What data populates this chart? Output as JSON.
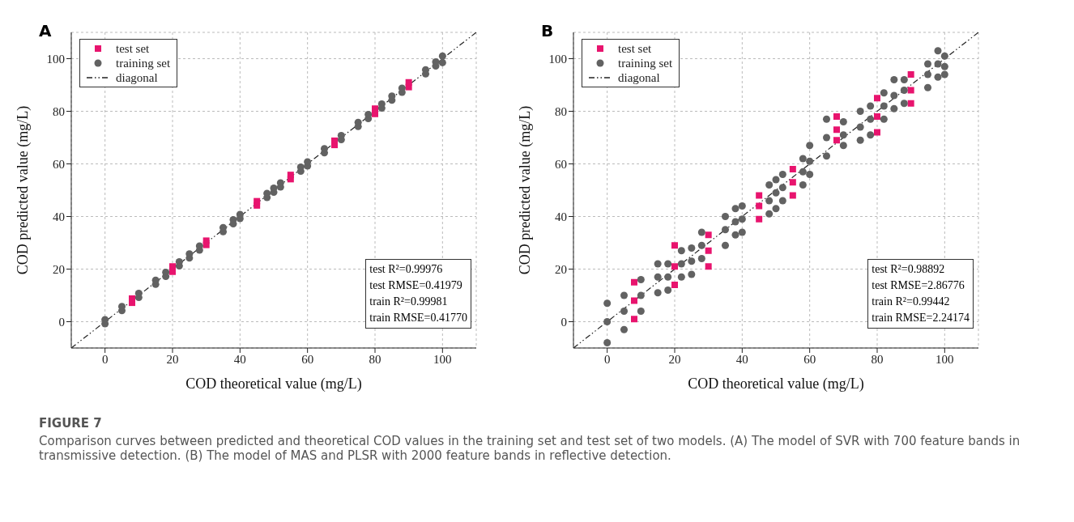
{
  "chart_data": [
    {
      "type": "scatter",
      "title": "A",
      "xlabel": "COD theoretical value (mg/L)",
      "ylabel": "COD predicted value (mg/L)",
      "xlim": [
        -10,
        110
      ],
      "ylim": [
        -10,
        110
      ],
      "xticks": [
        0,
        20,
        40,
        60,
        80,
        100
      ],
      "yticks": [
        0,
        20,
        40,
        60,
        80,
        100
      ],
      "grid": true,
      "legend": "top left",
      "series": [
        {
          "name": "test set",
          "color": "#e8146e",
          "marker": "square",
          "x": [
            8,
            8,
            20,
            20,
            30,
            30,
            45,
            45,
            55,
            55,
            68,
            68,
            80,
            80,
            90,
            90
          ],
          "values": [
            7.2,
            8.8,
            19,
            21,
            29.2,
            30.8,
            44.2,
            45.8,
            54.2,
            55.8,
            67.2,
            68.8,
            79,
            81,
            89.2,
            91
          ]
        },
        {
          "name": "training set",
          "color": "#626262",
          "marker": "circle",
          "x": [
            0,
            0,
            5,
            5,
            10,
            10,
            15,
            15,
            18,
            18,
            22,
            22,
            25,
            25,
            28,
            28,
            35,
            35,
            38,
            38,
            40,
            40,
            48,
            48,
            50,
            50,
            52,
            52,
            58,
            58,
            60,
            60,
            65,
            65,
            70,
            70,
            75,
            75,
            78,
            78,
            82,
            82,
            85,
            85,
            88,
            88,
            95,
            95,
            98,
            98,
            100,
            100
          ],
          "values": [
            -0.8,
            0.8,
            4.2,
            5.8,
            9.2,
            10.8,
            14.2,
            15.8,
            17.2,
            18.8,
            21.2,
            22.8,
            24.2,
            25.8,
            27.2,
            28.8,
            34.2,
            35.8,
            37.2,
            38.8,
            39.2,
            40.8,
            47.2,
            48.8,
            49.2,
            50.8,
            51.2,
            52.8,
            57.2,
            58.8,
            59.2,
            60.8,
            64.2,
            65.8,
            69.2,
            70.8,
            74.2,
            75.8,
            77.2,
            78.8,
            81.2,
            82.8,
            84.2,
            85.8,
            87.2,
            88.8,
            94.2,
            95.8,
            97.2,
            98.8,
            98.5,
            101
          ]
        },
        {
          "name": "diagonal",
          "type": "line",
          "color": "#222222",
          "line_style": "dashed",
          "marker": "none",
          "x": [
            -10,
            110
          ],
          "values": [
            -10,
            110
          ]
        }
      ],
      "annotations": [
        "test R²=0.99976",
        "test RMSE=0.41979",
        "train R²=0.99981",
        "train RMSE=0.41770",
        "FIGURE 7",
        "Comparison curves between predicted and theoretical COD values in the training set and test set of two models. (A) The model of SVR with 700 feature bands in transmissive detection. (B) The model of MAS and PLSR with 2000 feature bands in reflective detection."
      ]
    },
    {
      "type": "scatter",
      "title": "B",
      "xlabel": "COD theoretical value (mg/L)",
      "ylabel": "COD predicted value (mg/L)",
      "xlim": [
        -10,
        110
      ],
      "ylim": [
        -10,
        110
      ],
      "xticks": [
        0,
        20,
        40,
        60,
        80,
        100
      ],
      "yticks": [
        0,
        20,
        40,
        60,
        80,
        100
      ],
      "grid": true,
      "legend": "top left",
      "series": [
        {
          "name": "test set",
          "color": "#e8146e",
          "marker": "square",
          "x": [
            8,
            8,
            8,
            20,
            20,
            20,
            30,
            30,
            30,
            45,
            45,
            45,
            55,
            55,
            55,
            68,
            68,
            68,
            80,
            80,
            80,
            90,
            90,
            90
          ],
          "values": [
            1,
            8,
            15,
            14,
            21,
            29,
            21,
            27,
            33,
            39,
            44,
            48,
            48,
            53,
            58,
            69,
            73,
            78,
            72,
            78,
            85,
            83,
            88,
            94
          ]
        },
        {
          "name": "training set",
          "color": "#626262",
          "marker": "circle",
          "x": [
            0,
            0,
            0,
            5,
            5,
            5,
            10,
            10,
            10,
            15,
            15,
            15,
            18,
            18,
            18,
            22,
            22,
            22,
            25,
            25,
            25,
            28,
            28,
            28,
            35,
            35,
            35,
            38,
            38,
            38,
            40,
            40,
            40,
            48,
            48,
            48,
            50,
            50,
            50,
            52,
            52,
            52,
            58,
            58,
            58,
            60,
            60,
            60,
            65,
            65,
            65,
            70,
            70,
            70,
            75,
            75,
            75,
            78,
            78,
            78,
            82,
            82,
            82,
            85,
            85,
            85,
            88,
            88,
            88,
            95,
            95,
            95,
            98,
            98,
            98,
            100,
            100,
            100
          ],
          "values": [
            -8,
            0,
            7,
            -3,
            4,
            10,
            4,
            10,
            16,
            11,
            17,
            22,
            12,
            17,
            22,
            17,
            22,
            27,
            18,
            23,
            28,
            24,
            29,
            34,
            29,
            35,
            40,
            33,
            38,
            43,
            34,
            39,
            44,
            41,
            46,
            52,
            43,
            49,
            54,
            46,
            51,
            56,
            52,
            57,
            62,
            56,
            61,
            67,
            63,
            70,
            77,
            67,
            71,
            76,
            69,
            74,
            80,
            71,
            77,
            82,
            77,
            82,
            87,
            81,
            86,
            92,
            83,
            88,
            92,
            89,
            94,
            98,
            93,
            98,
            103,
            94,
            97,
            101
          ]
        },
        {
          "name": "diagonal",
          "type": "line",
          "color": "#222222",
          "line_style": "dashed",
          "marker": "none",
          "x": [
            -10,
            110
          ],
          "values": [
            -10,
            110
          ]
        }
      ],
      "annotations": [
        "test R²=0.98892",
        "test RMSE=2.86776",
        "train R²=0.99442",
        "train RMSE=2.24174"
      ]
    }
  ]
}
